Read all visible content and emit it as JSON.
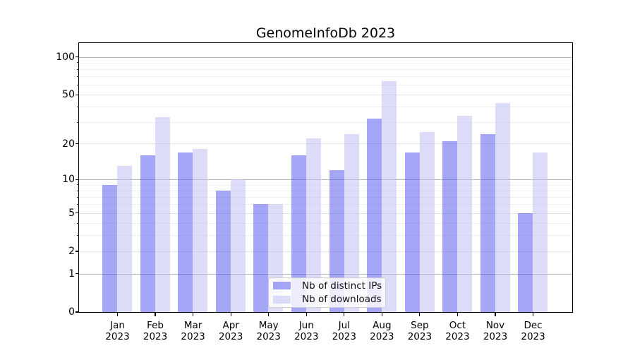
{
  "title": "GenomeInfoDb 2023",
  "chart_data": {
    "type": "bar",
    "title": "GenomeInfoDb 2023",
    "categories": [
      "Jan",
      "Feb",
      "Mar",
      "Apr",
      "May",
      "Jun",
      "Jul",
      "Aug",
      "Sep",
      "Oct",
      "Nov",
      "Dec"
    ],
    "year_label": "2023",
    "series": [
      {
        "name": "Nb of distinct IPs",
        "color_hex": "#a6a6f6",
        "fill": "rgba(77,77,238,0.5)",
        "values": [
          9,
          16,
          17,
          8,
          6,
          16,
          12,
          32,
          17,
          21,
          24,
          5
        ]
      },
      {
        "name": "Nb of downloads",
        "color_hex": "#dcdcf9",
        "fill": "rgba(187,187,243,0.5)",
        "values": [
          13,
          33,
          18,
          10,
          6,
          22,
          24,
          64,
          25,
          34,
          43,
          17
        ]
      }
    ],
    "xlabel": "",
    "ylabel": "",
    "yscale": "log1p",
    "yticks": [
      0,
      1,
      2,
      5,
      10,
      20,
      50,
      100
    ],
    "minor_yticks": [
      3,
      4,
      6,
      7,
      8,
      9,
      30,
      40,
      60,
      70,
      80,
      90
    ],
    "ylim": [
      0,
      129
    ],
    "grid": true,
    "grid_color_decade": "#b8b8b8",
    "grid_color_labeled": "#e4e4e4",
    "grid_color_minor": "#efefef",
    "axis_color": "#000000",
    "background": "#ffffff",
    "legend_position": "lower center"
  }
}
